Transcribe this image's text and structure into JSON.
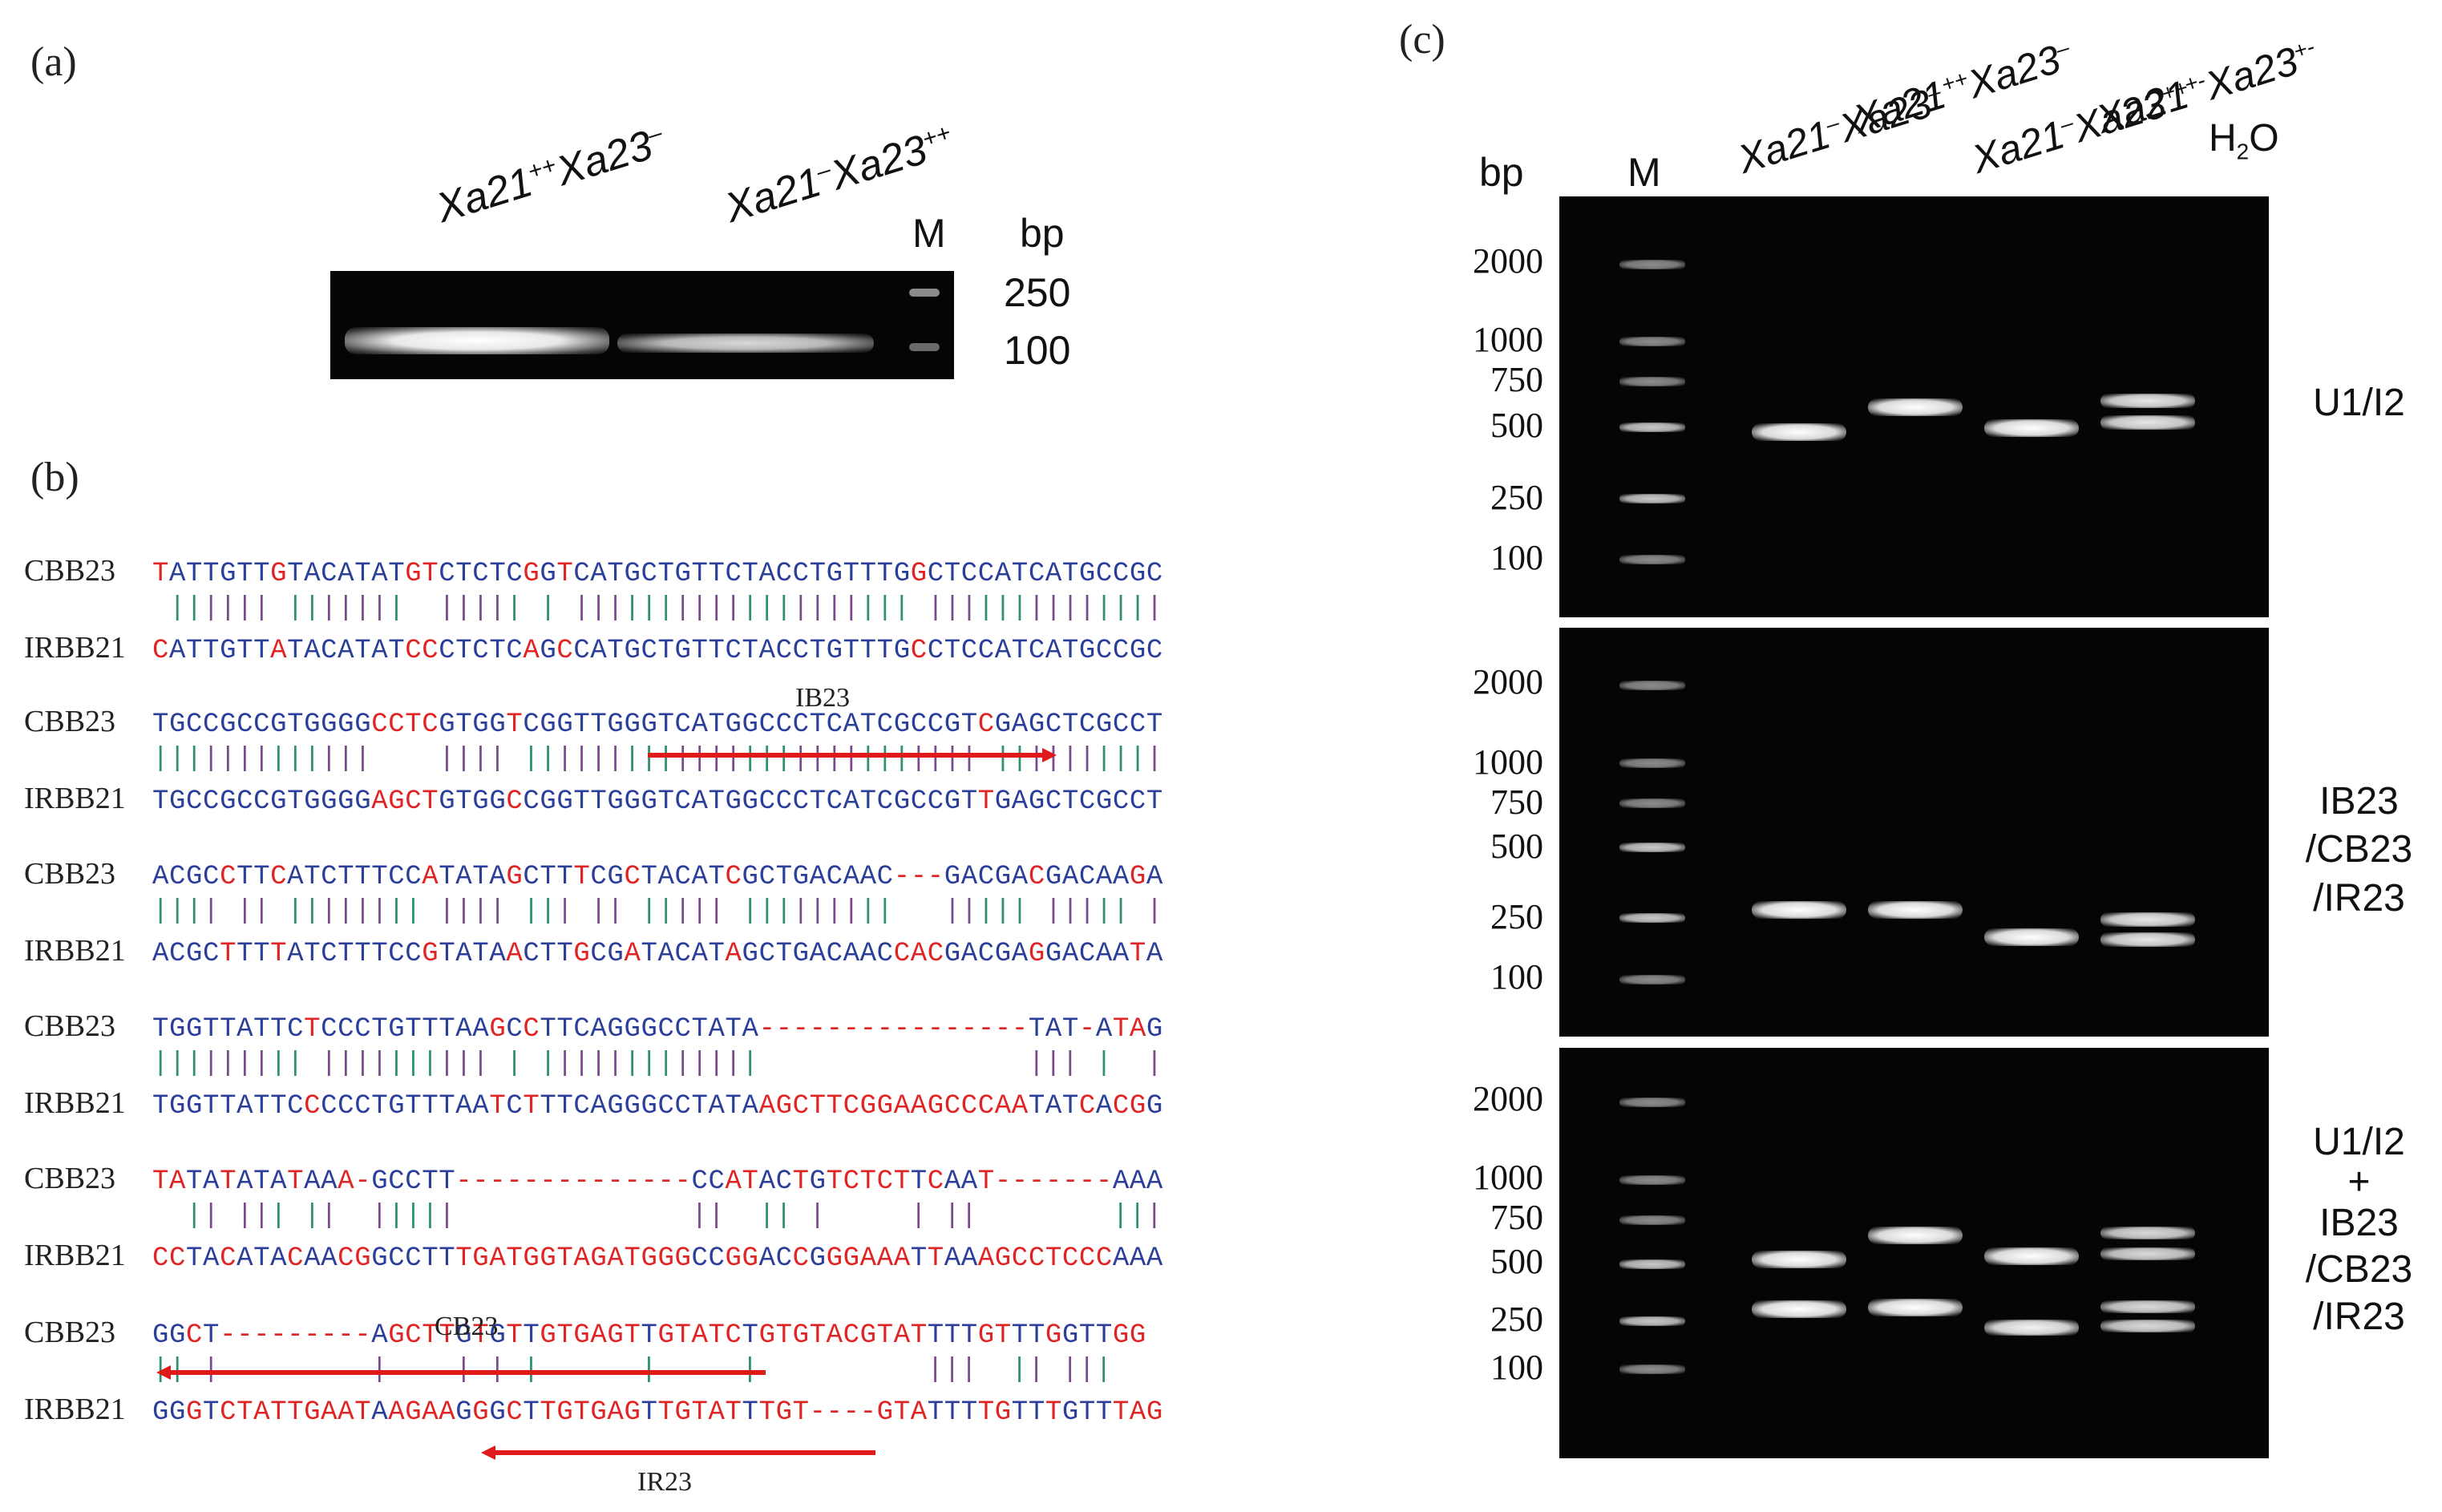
{
  "panels": {
    "a": {
      "label": "(a)",
      "lanes": [
        {
          "base": "Xa21",
          "sup1": "++",
          "mid": "Xa23",
          "sup2": "–"
        },
        {
          "base": "Xa21",
          "sup1": "–",
          "mid": "Xa23",
          "sup2": "++"
        }
      ],
      "marker": "M",
      "bp_title": "bp",
      "bp_ticks": [
        "250",
        "100"
      ]
    },
    "b": {
      "label": "(b)",
      "names": {
        "top": "CBB23",
        "bottom": "IRBB21"
      },
      "blocks": [
        {
          "top": "TATTGTTGTACATATGTCTCTCGGTCATGCTGTTCTACCTGTTTGGCTCCATCATGCCGC",
          "bottom": "CATTGTTATACATATCCCTCTCAGCCATGCTGTTCTACCTGTTTGCCTCCATCATGCCGC"
        },
        {
          "top": "TGCCGCCGTGGGGCCTCGTGGTCGGTTGGGTCATGGCCCTCATCGCCGTCGAGCTCGCCT",
          "bottom": "TGCCGCCGTGGGGAGCTGTGGCCGGTTGGGTCATGGCCCTCATCGCCGTTGAGCTCGCCT"
        },
        {
          "top": "ACGCCTTCATCTTTCCATATAGCTTTCGCTACATCGCTGACAAC---GACGACGACAAGA",
          "bottom": "ACGCTTTTATCTTTCCGTATAACTTGCGATACATAGCTGACAACCACGACGAGGACAATA"
        },
        {
          "top": "TGGTTATTCTCCCTGTTTAAGCCTTCAGGGCCTATA----------------TAT-ATAG",
          "bottom": "TGGTTATTCCCCCTGTTTAATCTTTCAGGGCCTATAAGCTTCGGAAGCCCAATATCACGG"
        },
        {
          "top": "TATATATATAAA-GCCTT--------------CCATACTGTCTCTTCAAT-------AAA",
          "bottom": "CCTACATACAACGGCCTTTGATGGTAGATGGGCCGGACCGGGAAATTAAAGCCTCCCAAA"
        },
        {
          "top": "GGCT---------AGCTTGTGTTGTGAGTTGTATCTGTGTACGTATTTTGTTTGGTTGG",
          "bottom": "GGGTCTATTGAATAAGAAGGGCTTGTGAGTTGTATTTGT----GTATTTTGTTTGTTTAG"
        }
      ],
      "primers": [
        {
          "name": "IB23",
          "block": 1
        },
        {
          "name": "CB23",
          "block": 5
        },
        {
          "name": "IR23",
          "block": 5
        }
      ]
    },
    "c": {
      "label": "(c)",
      "bp_title": "bp",
      "marker": "M",
      "lanes": [
        {
          "base": "Xa21",
          "sup1": "–",
          "mid": "Xa23",
          "sup2": "–"
        },
        {
          "base": "Xa21",
          "sup1": "++",
          "mid": "Xa23",
          "sup2": "–"
        },
        {
          "base": "Xa21",
          "sup1": "–",
          "mid": "Xa23",
          "sup2": "++"
        },
        {
          "base": "Xa21",
          "sup1": "+-",
          "mid": "Xa23",
          "sup2": "+-"
        }
      ],
      "water": {
        "h": "H",
        "sub": "2",
        "o": "O"
      },
      "gels": [
        {
          "primers": [
            "U1/I2"
          ],
          "bp_ticks": [
            "2000",
            "1000",
            "750",
            "500",
            "250",
            "100"
          ]
        },
        {
          "primers": [
            "IB23",
            "/CB23",
            "/IR23"
          ],
          "bp_ticks": [
            "2000",
            "1000",
            "750",
            "500",
            "250",
            "100"
          ]
        },
        {
          "primers": [
            "U1/I2",
            "+",
            "IB23",
            "/CB23",
            "/IR23"
          ],
          "bp_ticks": [
            "2000",
            "1000",
            "750",
            "500",
            "250",
            "100"
          ]
        }
      ]
    }
  },
  "colors": {
    "seq_blue": "#2b3f9a",
    "seq_red": "#e02424",
    "arrow_red": "#e01a1a",
    "bar_purple": "#7a4a8a",
    "bar_green": "#2f8f6f"
  }
}
